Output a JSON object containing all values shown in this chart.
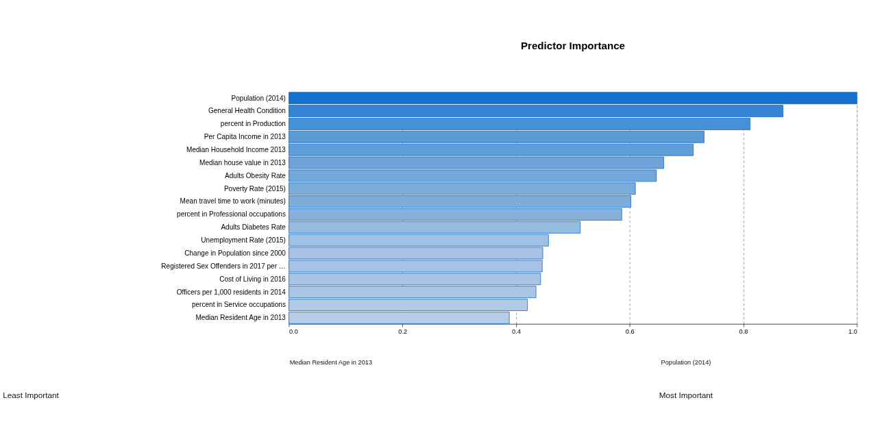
{
  "chart_data": {
    "type": "bar",
    "orientation": "horizontal",
    "title": "Predictor Importance",
    "categories": [
      "Population (2014)",
      "General Health Condition",
      "percent in Production",
      "Per Capita Income in 2013",
      "Median Household Income 2013",
      "Median house value in 2013",
      "Adults Obesity Rate",
      "Poverty Rate (2015)",
      "Mean travel time to work (minutes)",
      "percent in Professional occupations",
      "Adults Diabetes Rate",
      "Unemployment Rate (2015)",
      "Change in Population since 2000",
      "Registered Sex Offenders in 2017 per …",
      "Cost of Living in 2016",
      "Officers per 1,000 residents in 2014",
      "percent in Service occupations",
      "Median Resident Age in 2013"
    ],
    "values": [
      1.0,
      0.87,
      0.812,
      0.731,
      0.712,
      0.66,
      0.647,
      0.61,
      0.602,
      0.586,
      0.513,
      0.457,
      0.447,
      0.446,
      0.443,
      0.435,
      0.42,
      0.388
    ],
    "colors": [
      "#1570d0",
      "#3585d3",
      "#4690d6",
      "#5b9bd5",
      "#5f9fd8",
      "#70a4d9",
      "#72a7d9",
      "#7aaed9",
      "#80acd8",
      "#88b0dc",
      "#94bde0",
      "#a1c1e3",
      "#a7c2e4",
      "#a8c2e4",
      "#a9c3e4",
      "#abc4e4",
      "#b0c9e6",
      "#b5cde8"
    ],
    "xlim": [
      0.0,
      1.0
    ],
    "xticks": [
      {
        "value": 0,
        "label": "0.0"
      },
      0.2,
      0.4,
      0.6,
      0.8,
      {
        "value": 1,
        "label": "1.0"
      }
    ],
    "grid": "x",
    "legend": false,
    "annotations": [
      "Median Resident Age in 2013",
      "Population (2014)",
      "Least Important",
      "Most Important"
    ]
  }
}
